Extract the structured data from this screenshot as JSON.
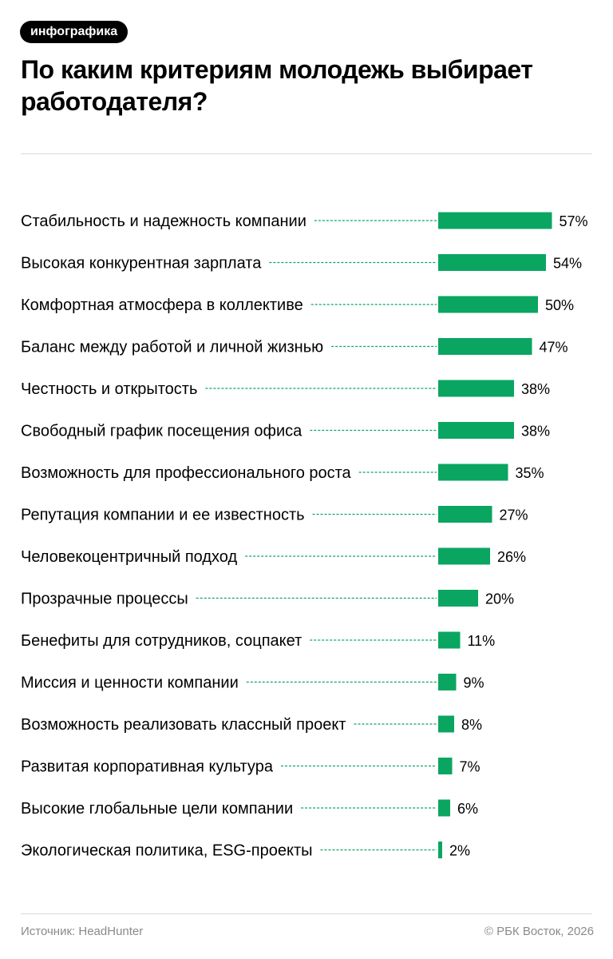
{
  "badge": "инфографика",
  "title": "По каким критериям молодежь выбирает работодателя?",
  "footer": {
    "source": "Источник: HeadHunter",
    "copyright": "© РБК Восток, 2026"
  },
  "colors": {
    "bar": "#0aa661",
    "leader": "#0aa661",
    "text": "#000000",
    "muted": "#8a8a8a"
  },
  "chart_data": {
    "type": "bar",
    "orientation": "horizontal",
    "categories": [
      "Стабильность и надежность компании",
      "Высокая конкурентная зарплата",
      "Комфортная атмосфера в коллективе",
      "Баланс между работой и личной жизнью",
      "Честность и открытость",
      "Свободный график посещения офиса",
      "Возможность для профессионального роста",
      "Репутация компании и ее известность",
      "Человекоцентричный подход",
      "Прозрачные процессы",
      "Бенефиты для сотрудников, соцпакет",
      "Миссия и ценности компании",
      "Возможность реализовать классный проект",
      "Развитая корпоративная культура",
      "Высокие глобальные цели компании",
      "Экологическая политика, ESG-проекты"
    ],
    "values": [
      57,
      54,
      50,
      47,
      38,
      38,
      35,
      27,
      26,
      20,
      11,
      9,
      8,
      7,
      6,
      2
    ],
    "value_labels": [
      "57%",
      "54%",
      "50%",
      "47%",
      "38%",
      "38%",
      "35%",
      "27%",
      "26%",
      "20%",
      "11%",
      "9%",
      "8%",
      "7%",
      "6%",
      "2%"
    ],
    "unit": "%",
    "title": "",
    "xlabel": "",
    "ylabel": "",
    "grid": false,
    "legend": "none"
  }
}
